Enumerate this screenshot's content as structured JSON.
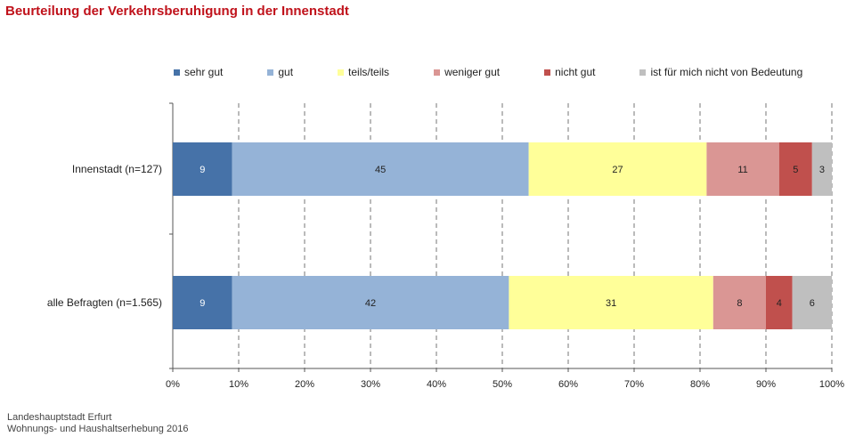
{
  "title": "Beurteilung der Verkehrsberuhigung in der Innenstadt",
  "footer": {
    "line1": "Landeshauptstadt Erfurt",
    "line2": "Wohnungs- und Haushaltserhebung 2016"
  },
  "chart_data": {
    "type": "bar",
    "orientation": "horizontal",
    "stacked": true,
    "categories": [
      "Innenstadt (n=127)",
      "alle Befragten (n=1.565)"
    ],
    "series": [
      {
        "name": "sehr gut",
        "color": "#4672a8",
        "values": [
          9,
          9
        ]
      },
      {
        "name": "gut",
        "color": "#95b3d7",
        "values": [
          45,
          42
        ]
      },
      {
        "name": "teils/teils",
        "color": "#ffff99",
        "values": [
          27,
          31
        ]
      },
      {
        "name": "weniger gut",
        "color": "#da9694",
        "values": [
          11,
          8
        ]
      },
      {
        "name": "nicht gut",
        "color": "#c0504d",
        "values": [
          5,
          4
        ]
      },
      {
        "name": "ist für mich nicht von Bedeutung",
        "color": "#bfbfbf",
        "values": [
          3,
          6
        ]
      }
    ],
    "xlim": [
      0,
      100
    ],
    "xticks": [
      "0%",
      "10%",
      "20%",
      "30%",
      "40%",
      "50%",
      "60%",
      "70%",
      "80%",
      "90%",
      "100%"
    ],
    "grid": "vertical dashed",
    "legend_position": "top"
  }
}
